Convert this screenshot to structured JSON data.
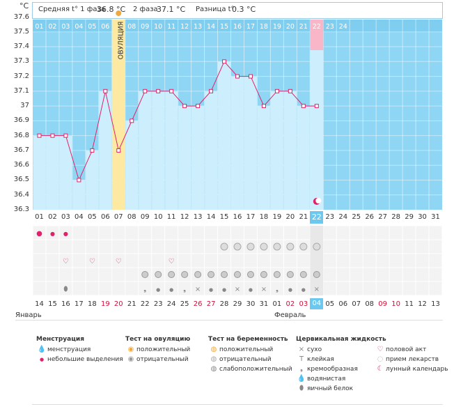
{
  "header": {
    "unit": "°C",
    "phase1_label": "Средняя t° 1 фаза",
    "phase1_value": "36.8 °C",
    "phase2_label": "2 фаза",
    "phase2_value": "37.1 °C",
    "diff_label": "Разница t°",
    "diff_value": "0.3 °C"
  },
  "chart_data": {
    "type": "line",
    "title": "",
    "ylabel": "°C",
    "ylim": [
      36.3,
      37.6
    ],
    "yticks": [
      "37.6",
      "37.5",
      "37.4",
      "37.3",
      "37.2",
      "37.1",
      "37",
      "36.9",
      "36.8",
      "36.7",
      "36.6",
      "36.5",
      "36.4",
      "36.3"
    ],
    "cycle_days": [
      "01",
      "02",
      "03",
      "04",
      "05",
      "06",
      "07",
      "08",
      "09",
      "10",
      "11",
      "12",
      "13",
      "14",
      "15",
      "16",
      "17",
      "18",
      "19",
      "20",
      "21",
      "22",
      "23",
      "24",
      "25",
      "26",
      "27",
      "28",
      "29",
      "30",
      "31"
    ],
    "top_days": [
      "01",
      "02",
      "03",
      "04",
      "05",
      "06",
      "07",
      "08",
      "09",
      "10",
      "11",
      "12",
      "13",
      "14",
      "15",
      "16",
      "17",
      "18",
      "19",
      "20",
      "21",
      "22",
      "23",
      "24"
    ],
    "temperatures": [
      36.8,
      36.8,
      36.8,
      36.5,
      36.7,
      37.1,
      36.7,
      36.9,
      37.1,
      37.1,
      37.1,
      37.0,
      37.0,
      37.1,
      37.3,
      37.2,
      37.2,
      37.0,
      37.1,
      37.1,
      37.0,
      37.0
    ],
    "ovulation_day_index": 6,
    "ovulation_label": "ОВУЛЯЦИЯ",
    "current_day_index": 21,
    "calendar_dates": [
      "14",
      "15",
      "16",
      "17",
      "18",
      "19",
      "20",
      "21",
      "22",
      "23",
      "24",
      "25",
      "26",
      "27",
      "28",
      "29",
      "30",
      "31",
      "01",
      "02",
      "03",
      "04",
      "05",
      "06",
      "07",
      "08",
      "09",
      "10",
      "11",
      "12",
      "13"
    ],
    "red_dates_idx": [
      5,
      6,
      12,
      13,
      19,
      20,
      26,
      27
    ],
    "month1": "Январь",
    "month2": "Февраль"
  },
  "legend": {
    "menstruation": {
      "title": "Менструация",
      "items": [
        "менструация",
        "небольшие выделения"
      ]
    },
    "ovulation_test": {
      "title": "Тест на овуляцию",
      "items": [
        "положительный",
        "отрицательный"
      ]
    },
    "pregnancy_test": {
      "title": "Тест на беременность",
      "items": [
        "положительный",
        "отрицательный",
        "слабоположительный"
      ]
    },
    "cervical": {
      "title": "Цервикальная жидкость",
      "items": [
        "сухо",
        "клейкая",
        "кремообразная",
        "водянистая",
        "яичный белок"
      ]
    },
    "other": {
      "items": [
        "половой акт",
        "прием лекарств",
        "лунный календарь"
      ]
    }
  },
  "colors": {
    "bg_blue": "#8fd6f4",
    "fill": "#cdeefc",
    "line": "#e0226a",
    "ovulation": "#fde9a1",
    "today": "#f9b6c8",
    "grid": "#ffffff"
  }
}
